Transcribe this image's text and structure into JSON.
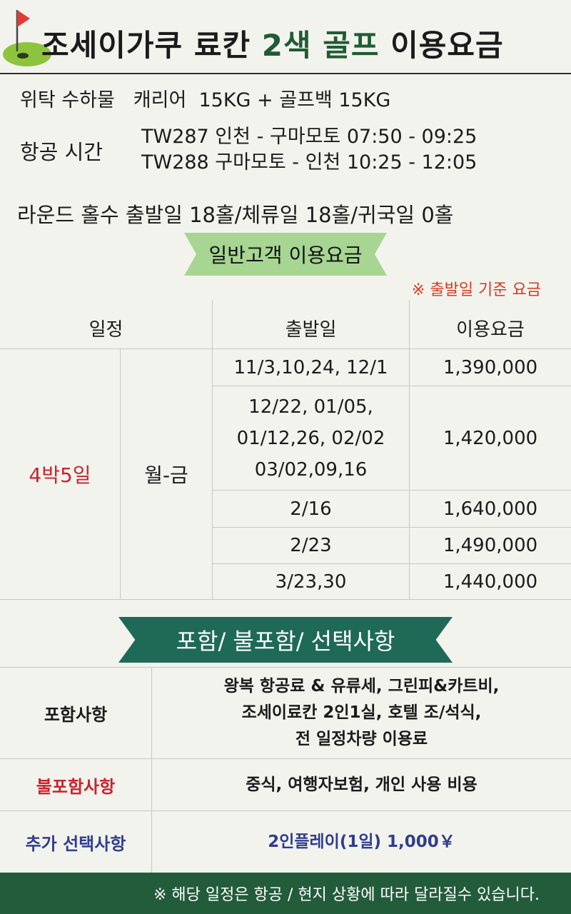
{
  "header": {
    "title_prefix": "조세이가쿠 료칸",
    "title_highlight": "2색 골프",
    "title_suffix": "이용요금"
  },
  "info": {
    "luggage_label": "위탁 수하물",
    "luggage_value": "캐리어  15KG + 골프백 15KG",
    "flight_label": "항공 시간",
    "flights": [
      "TW287 인천 - 구마모토 07:50 - 09:25",
      "TW288 구마모토 - 인천 10:25 - 12:05"
    ],
    "rounds": "라운드 홀수 출발일 18홀/체류일 18홀/귀국일 0홀"
  },
  "pricing": {
    "section_label": "일반고객 이용요금",
    "note": "※ 출발일 기준 요금",
    "headers": {
      "schedule": "일정",
      "departure": "출발일",
      "price": "이용요금"
    },
    "duration": "4박5일",
    "days": "월-금",
    "rows": [
      {
        "dates": [
          "11/3,10,24, 12/1"
        ],
        "price": "1,390,000"
      },
      {
        "dates": [
          "12/22, 01/05,",
          "01/12,26, 02/02",
          "03/02,09,16"
        ],
        "price": "1,420,000"
      },
      {
        "dates": [
          "2/16"
        ],
        "price": "1,640,000"
      },
      {
        "dates": [
          "2/23"
        ],
        "price": "1,490,000"
      },
      {
        "dates": [
          "3/23,30"
        ],
        "price": "1,440,000"
      }
    ]
  },
  "inclusions": {
    "section_label": "포함/ 불포함/ 선택사항",
    "included_label": "포함사항",
    "included_lines": [
      "왕복 항공료 & 유류세, 그린피&카트비,",
      "조세이료칸 2인1실, 호텔 조/석식,",
      "전 일정차량 이용료"
    ],
    "excluded_label": "불포함사항",
    "excluded_value": "중식, 여행자보험, 개인 사용 비용",
    "optional_label": "추가 선택사항",
    "optional_value": "2인플레이(1일) 1,000￥"
  },
  "footer": {
    "note": "※ 해당 일정은 항공 / 현지 상황에 따라 달라질수 있습니다."
  },
  "colors": {
    "accent_green": "#1f5c35",
    "ribbon_light": "#a6d692",
    "ribbon_dark": "#1e6a57",
    "footer_bg": "#235c3b",
    "red_text": "#c8242c",
    "blue_text": "#2f3e8e"
  }
}
